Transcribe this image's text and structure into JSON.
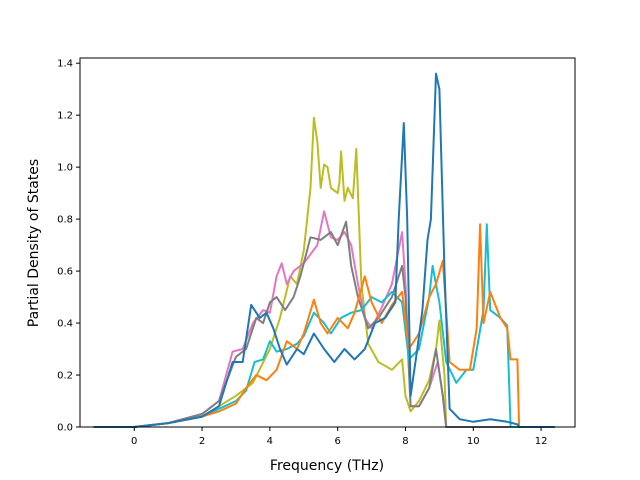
{
  "chart_data": {
    "type": "line",
    "title": "",
    "xlabel": "Frequency (THz)",
    "ylabel": "Partial Density of States",
    "xlim": [
      -1.6,
      13.0
    ],
    "ylim": [
      0.0,
      1.42
    ],
    "xticks": [
      0,
      2,
      4,
      6,
      8,
      10,
      12
    ],
    "yticks": [
      0.0,
      0.2,
      0.4,
      0.6,
      0.8,
      1.0,
      1.2,
      1.4
    ],
    "grid": false,
    "legend": "none",
    "series": [
      {
        "color": "#bcbd22",
        "points": [
          [
            -1.2,
            0
          ],
          [
            0,
            0
          ],
          [
            1,
            0.015
          ],
          [
            2,
            0.04
          ],
          [
            2.5,
            0.08
          ],
          [
            3,
            0.12
          ],
          [
            3.5,
            0.17
          ],
          [
            4,
            0.3
          ],
          [
            4.3,
            0.42
          ],
          [
            4.6,
            0.58
          ],
          [
            4.8,
            0.55
          ],
          [
            5,
            0.68
          ],
          [
            5.2,
            0.92
          ],
          [
            5.3,
            1.19
          ],
          [
            5.4,
            1.1
          ],
          [
            5.5,
            0.92
          ],
          [
            5.6,
            1.01
          ],
          [
            5.7,
            1.0
          ],
          [
            5.8,
            0.92
          ],
          [
            6,
            0.9
          ],
          [
            6.05,
            0.94
          ],
          [
            6.1,
            1.06
          ],
          [
            6.2,
            0.87
          ],
          [
            6.3,
            0.92
          ],
          [
            6.45,
            0.88
          ],
          [
            6.55,
            1.07
          ],
          [
            6.7,
            0.55
          ],
          [
            6.9,
            0.32
          ],
          [
            7.2,
            0.25
          ],
          [
            7.6,
            0.22
          ],
          [
            7.9,
            0.26
          ],
          [
            8,
            0.12
          ],
          [
            8.15,
            0.06
          ],
          [
            8.4,
            0.1
          ],
          [
            8.7,
            0.18
          ],
          [
            8.9,
            0.3
          ],
          [
            9.0,
            0.41
          ],
          [
            9.15,
            0.2
          ],
          [
            9.2,
            0.0
          ],
          [
            12.4,
            0
          ]
        ]
      },
      {
        "color": "#e377c2",
        "points": [
          [
            -1.2,
            0
          ],
          [
            0,
            0
          ],
          [
            1,
            0.015
          ],
          [
            2,
            0.05
          ],
          [
            2.5,
            0.1
          ],
          [
            2.9,
            0.29
          ],
          [
            3.2,
            0.3
          ],
          [
            3.5,
            0.4
          ],
          [
            3.8,
            0.45
          ],
          [
            4.0,
            0.44
          ],
          [
            4.2,
            0.58
          ],
          [
            4.35,
            0.63
          ],
          [
            4.5,
            0.55
          ],
          [
            4.7,
            0.6
          ],
          [
            5,
            0.63
          ],
          [
            5.4,
            0.7
          ],
          [
            5.6,
            0.83
          ],
          [
            5.8,
            0.73
          ],
          [
            6.0,
            0.72
          ],
          [
            6.2,
            0.75
          ],
          [
            6.4,
            0.7
          ],
          [
            6.6,
            0.55
          ],
          [
            6.8,
            0.42
          ],
          [
            7.0,
            0.38
          ],
          [
            7.3,
            0.46
          ],
          [
            7.6,
            0.55
          ],
          [
            7.9,
            0.75
          ],
          [
            8.0,
            0.55
          ],
          [
            8.15,
            0.08
          ],
          [
            8.4,
            0.08
          ],
          [
            8.7,
            0.15
          ],
          [
            8.95,
            0.25
          ],
          [
            9.1,
            0.12
          ],
          [
            9.2,
            0.0
          ],
          [
            12.4,
            0
          ]
        ]
      },
      {
        "color": "#7f7f7f",
        "points": [
          [
            -1.2,
            0
          ],
          [
            0,
            0
          ],
          [
            1,
            0.015
          ],
          [
            2,
            0.05
          ],
          [
            2.5,
            0.1
          ],
          [
            3.0,
            0.27
          ],
          [
            3.3,
            0.3
          ],
          [
            3.6,
            0.42
          ],
          [
            3.8,
            0.4
          ],
          [
            4.0,
            0.48
          ],
          [
            4.2,
            0.5
          ],
          [
            4.45,
            0.45
          ],
          [
            4.7,
            0.5
          ],
          [
            4.9,
            0.58
          ],
          [
            5.2,
            0.73
          ],
          [
            5.5,
            0.72
          ],
          [
            5.8,
            0.75
          ],
          [
            6.0,
            0.7
          ],
          [
            6.25,
            0.79
          ],
          [
            6.4,
            0.62
          ],
          [
            6.6,
            0.5
          ],
          [
            6.9,
            0.38
          ],
          [
            7.2,
            0.42
          ],
          [
            7.6,
            0.5
          ],
          [
            7.9,
            0.62
          ],
          [
            8.0,
            0.5
          ],
          [
            8.15,
            0.08
          ],
          [
            8.4,
            0.08
          ],
          [
            8.7,
            0.15
          ],
          [
            8.9,
            0.3
          ],
          [
            9.1,
            0.12
          ],
          [
            9.2,
            0.0
          ],
          [
            12.4,
            0
          ]
        ]
      },
      {
        "color": "#17becf",
        "points": [
          [
            -1.2,
            0
          ],
          [
            0,
            0
          ],
          [
            1,
            0.015
          ],
          [
            2,
            0.04
          ],
          [
            2.5,
            0.07
          ],
          [
            3,
            0.1
          ],
          [
            3.3,
            0.14
          ],
          [
            3.55,
            0.25
          ],
          [
            3.8,
            0.26
          ],
          [
            4.0,
            0.33
          ],
          [
            4.2,
            0.29
          ],
          [
            4.5,
            0.3
          ],
          [
            4.8,
            0.32
          ],
          [
            5.0,
            0.35
          ],
          [
            5.3,
            0.44
          ],
          [
            5.6,
            0.4
          ],
          [
            5.8,
            0.36
          ],
          [
            6.1,
            0.42
          ],
          [
            6.4,
            0.44
          ],
          [
            6.7,
            0.45
          ],
          [
            7.0,
            0.5
          ],
          [
            7.3,
            0.48
          ],
          [
            7.6,
            0.52
          ],
          [
            7.9,
            0.48
          ],
          [
            8.1,
            0.26
          ],
          [
            8.4,
            0.3
          ],
          [
            8.7,
            0.5
          ],
          [
            8.8,
            0.62
          ],
          [
            9.0,
            0.48
          ],
          [
            9.2,
            0.25
          ],
          [
            9.5,
            0.17
          ],
          [
            9.8,
            0.22
          ],
          [
            10.0,
            0.22
          ],
          [
            10.3,
            0.45
          ],
          [
            10.4,
            0.78
          ],
          [
            10.5,
            0.45
          ],
          [
            10.8,
            0.42
          ],
          [
            11.0,
            0.39
          ],
          [
            11.1,
            0.0
          ],
          [
            12.4,
            0
          ]
        ]
      },
      {
        "color": "#ff7f0e",
        "points": [
          [
            -1.2,
            0
          ],
          [
            0,
            0
          ],
          [
            1,
            0.015
          ],
          [
            2,
            0.04
          ],
          [
            2.5,
            0.06
          ],
          [
            3,
            0.09
          ],
          [
            3.3,
            0.15
          ],
          [
            3.6,
            0.2
          ],
          [
            3.9,
            0.18
          ],
          [
            4.2,
            0.22
          ],
          [
            4.5,
            0.33
          ],
          [
            4.8,
            0.3
          ],
          [
            5.0,
            0.36
          ],
          [
            5.3,
            0.49
          ],
          [
            5.5,
            0.4
          ],
          [
            5.7,
            0.36
          ],
          [
            6.0,
            0.42
          ],
          [
            6.3,
            0.38
          ],
          [
            6.5,
            0.44
          ],
          [
            6.8,
            0.58
          ],
          [
            7.0,
            0.48
          ],
          [
            7.3,
            0.4
          ],
          [
            7.6,
            0.47
          ],
          [
            7.9,
            0.52
          ],
          [
            8.1,
            0.3
          ],
          [
            8.4,
            0.36
          ],
          [
            8.7,
            0.5
          ],
          [
            8.9,
            0.55
          ],
          [
            9.1,
            0.64
          ],
          [
            9.3,
            0.25
          ],
          [
            9.6,
            0.22
          ],
          [
            9.9,
            0.22
          ],
          [
            10.1,
            0.38
          ],
          [
            10.2,
            0.78
          ],
          [
            10.3,
            0.4
          ],
          [
            10.5,
            0.52
          ],
          [
            10.8,
            0.42
          ],
          [
            11.0,
            0.38
          ],
          [
            11.1,
            0.26
          ],
          [
            11.3,
            0.26
          ],
          [
            11.35,
            0.0
          ],
          [
            12.4,
            0
          ]
        ]
      },
      {
        "color": "#1f77b4",
        "points": [
          [
            -1.2,
            0
          ],
          [
            0,
            0
          ],
          [
            1,
            0.015
          ],
          [
            2,
            0.04
          ],
          [
            2.5,
            0.08
          ],
          [
            2.9,
            0.25
          ],
          [
            3.2,
            0.25
          ],
          [
            3.45,
            0.47
          ],
          [
            3.7,
            0.42
          ],
          [
            3.9,
            0.44
          ],
          [
            4.1,
            0.38
          ],
          [
            4.3,
            0.3
          ],
          [
            4.5,
            0.24
          ],
          [
            4.8,
            0.3
          ],
          [
            5.0,
            0.28
          ],
          [
            5.3,
            0.36
          ],
          [
            5.6,
            0.3
          ],
          [
            5.9,
            0.25
          ],
          [
            6.2,
            0.3
          ],
          [
            6.5,
            0.26
          ],
          [
            6.8,
            0.3
          ],
          [
            7.1,
            0.4
          ],
          [
            7.4,
            0.42
          ],
          [
            7.7,
            0.48
          ],
          [
            7.8,
            0.8
          ],
          [
            7.95,
            1.17
          ],
          [
            8.05,
            0.8
          ],
          [
            8.15,
            0.12
          ],
          [
            8.35,
            0.3
          ],
          [
            8.5,
            0.45
          ],
          [
            8.65,
            0.72
          ],
          [
            8.75,
            0.8
          ],
          [
            8.9,
            1.36
          ],
          [
            9.0,
            1.3
          ],
          [
            9.15,
            0.6
          ],
          [
            9.3,
            0.07
          ],
          [
            9.6,
            0.03
          ],
          [
            10,
            0.02
          ],
          [
            10.5,
            0.03
          ],
          [
            11,
            0.02
          ],
          [
            11.3,
            0.01
          ],
          [
            11.35,
            0.0
          ],
          [
            12.4,
            0
          ]
        ]
      }
    ]
  }
}
